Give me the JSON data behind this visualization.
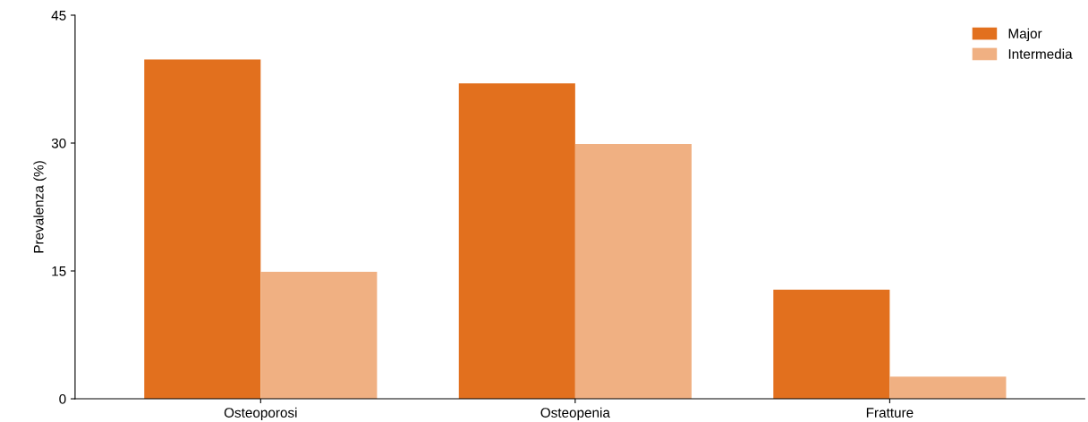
{
  "chart_data": {
    "type": "bar",
    "ylabel": "Prevalenza (%)",
    "categories": [
      "Osteoporosi",
      "Osteopenia",
      "Fratture"
    ],
    "series": [
      {
        "name": "Major",
        "color": "#e2701e",
        "values": [
          39.8,
          37.0,
          12.8
        ]
      },
      {
        "name": "Intermedia",
        "color": "#f0b082",
        "values": [
          14.9,
          29.9,
          2.6
        ]
      }
    ],
    "ylim": [
      0,
      45
    ],
    "yticks": [
      0,
      15,
      30,
      45
    ],
    "grid": false,
    "legend": "top right"
  }
}
